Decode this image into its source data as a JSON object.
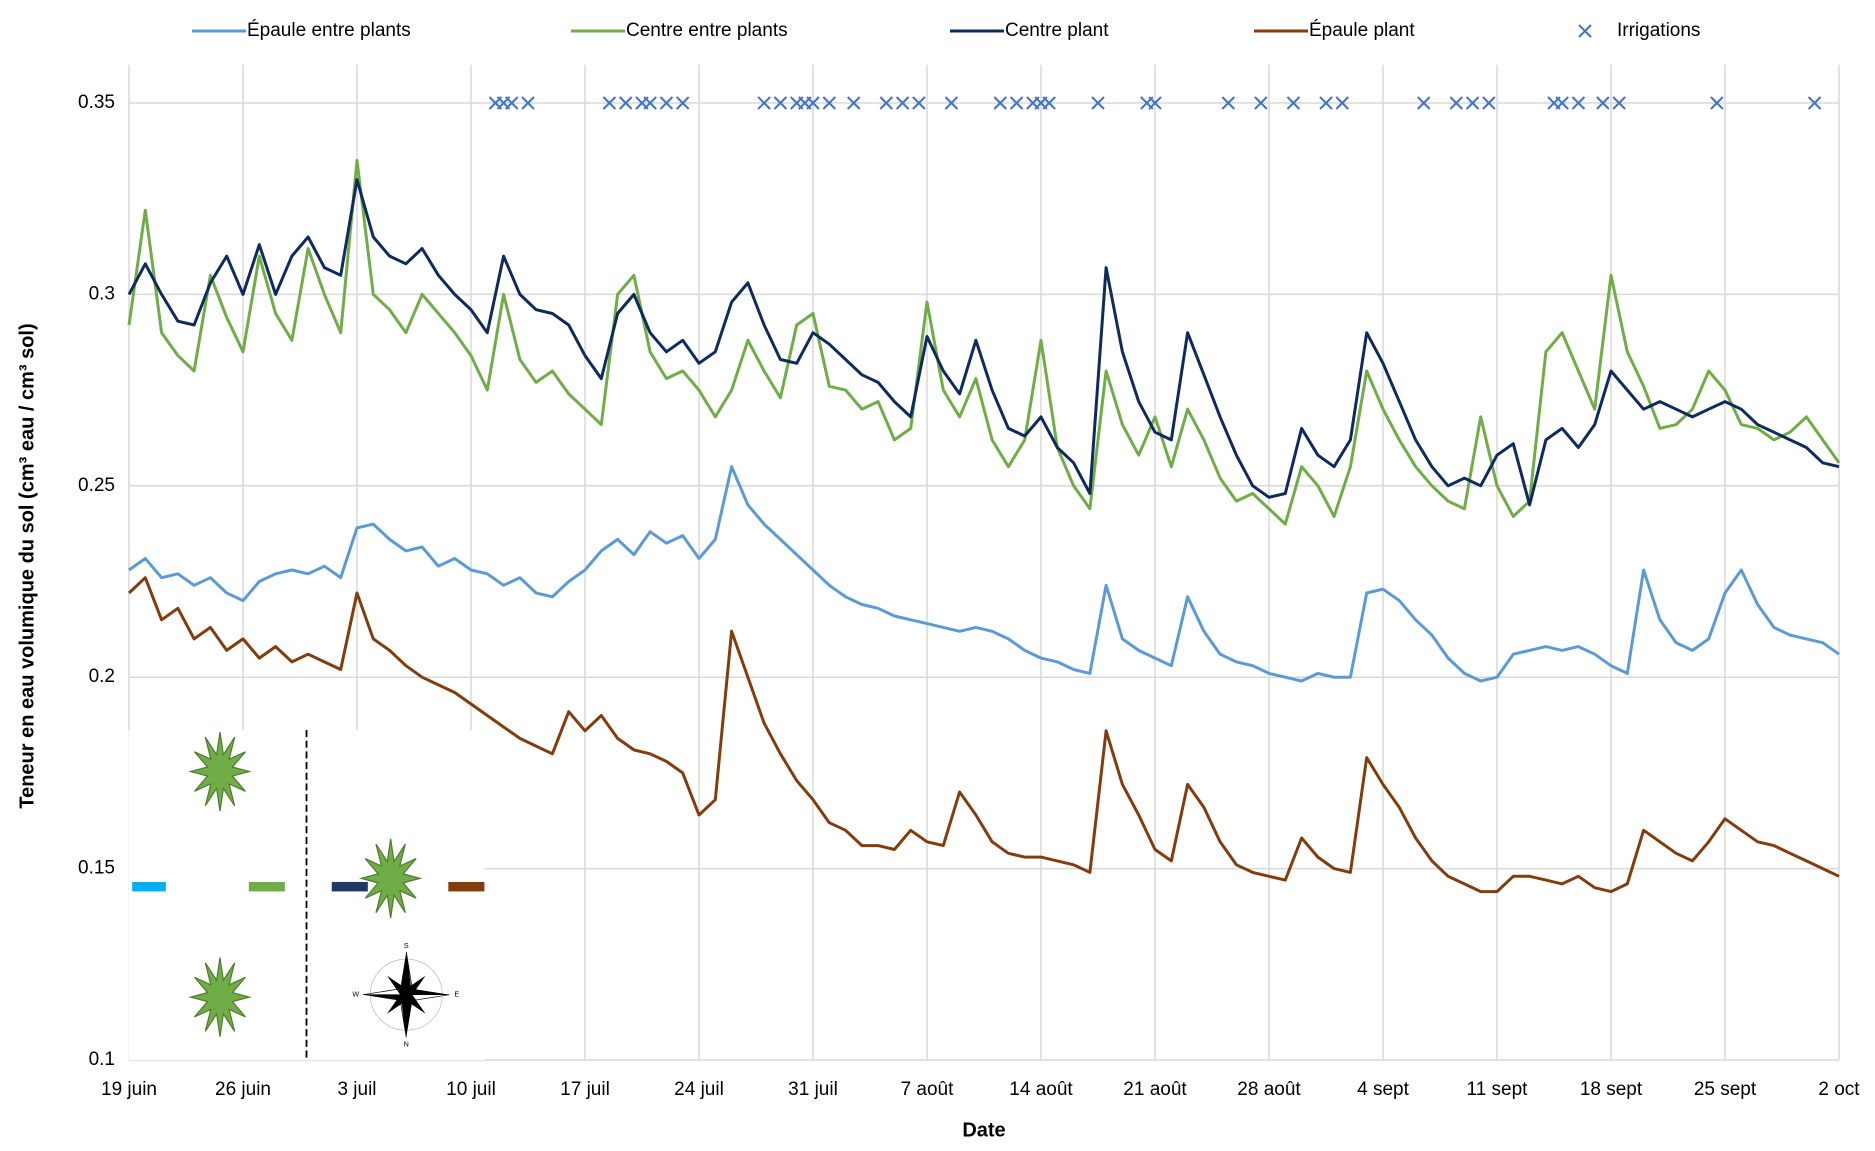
{
  "chart_data": {
    "type": "line",
    "x_label": "Date",
    "y_label": "Teneur en eau volumique du sol (cm³ eau / cm³ sol)",
    "x": [
      0,
      1,
      2,
      3,
      4,
      5,
      6,
      7,
      8,
      9,
      10,
      11,
      12,
      13,
      14,
      15,
      16,
      17,
      18,
      19,
      20,
      21,
      22,
      23,
      24,
      25,
      26,
      27,
      28,
      29,
      30,
      31,
      32,
      33,
      34,
      35,
      36,
      37,
      38,
      39,
      40,
      41,
      42,
      43,
      44,
      45,
      46,
      47,
      48,
      49,
      50,
      51,
      52,
      53,
      54,
      55,
      56,
      57,
      58,
      59,
      60,
      61,
      62,
      63,
      64,
      65,
      66,
      67,
      68,
      69,
      70,
      71,
      72,
      73,
      74,
      75,
      76,
      77,
      78,
      79,
      80,
      81,
      82,
      83,
      84,
      85,
      86,
      87,
      88,
      89,
      90,
      91,
      92,
      93,
      94,
      95,
      96,
      97,
      98,
      99,
      100,
      101,
      102,
      103,
      104,
      105
    ],
    "xlim": [
      0,
      105
    ],
    "xticks": [
      {
        "value": 0,
        "label": "19 juin"
      },
      {
        "value": 7,
        "label": "26 juin"
      },
      {
        "value": 14,
        "label": "3 juil"
      },
      {
        "value": 21,
        "label": "10 juil"
      },
      {
        "value": 28,
        "label": "17 juil"
      },
      {
        "value": 35,
        "label": "24 juil"
      },
      {
        "value": 42,
        "label": "31 juil"
      },
      {
        "value": 49,
        "label": "7 août"
      },
      {
        "value": 56,
        "label": "14 août"
      },
      {
        "value": 63,
        "label": "21 août"
      },
      {
        "value": 70,
        "label": "28 août"
      },
      {
        "value": 77,
        "label": "4 sept"
      },
      {
        "value": 84,
        "label": "11 sept"
      },
      {
        "value": 91,
        "label": "18 sept"
      },
      {
        "value": 98,
        "label": "25 sept"
      },
      {
        "value": 105,
        "label": "2 oct"
      }
    ],
    "ylim": [
      0.1,
      0.36
    ],
    "yticks": [
      0.1,
      0.15,
      0.2,
      0.25,
      0.3,
      0.35
    ],
    "grid": true,
    "legend": "top",
    "series": [
      {
        "name": "Épaule entre plants",
        "color": "#5b9bd5",
        "values": [
          0.228,
          0.231,
          0.226,
          0.227,
          0.224,
          0.226,
          0.222,
          0.22,
          0.225,
          0.227,
          0.228,
          0.227,
          0.229,
          0.226,
          0.239,
          0.24,
          0.236,
          0.233,
          0.234,
          0.229,
          0.231,
          0.228,
          0.227,
          0.224,
          0.226,
          0.222,
          0.221,
          0.225,
          0.228,
          0.233,
          0.236,
          0.232,
          0.238,
          0.235,
          0.237,
          0.231,
          0.236,
          0.255,
          0.245,
          0.24,
          0.236,
          0.232,
          0.228,
          0.224,
          0.221,
          0.219,
          0.218,
          0.216,
          0.215,
          0.214,
          0.213,
          0.212,
          0.213,
          0.212,
          0.21,
          0.207,
          0.205,
          0.204,
          0.202,
          0.201,
          0.224,
          0.21,
          0.207,
          0.205,
          0.203,
          0.221,
          0.212,
          0.206,
          0.204,
          0.203,
          0.201,
          0.2,
          0.199,
          0.201,
          0.2,
          0.2,
          0.222,
          0.223,
          0.22,
          0.215,
          0.211,
          0.205,
          0.201,
          0.199,
          0.2,
          0.206,
          0.207,
          0.208,
          0.207,
          0.208,
          0.206,
          0.203,
          0.201,
          0.228,
          0.215,
          0.209,
          0.207,
          0.21,
          0.222,
          0.228,
          0.219,
          0.213,
          0.211,
          0.21,
          0.209,
          0.206
        ]
      },
      {
        "name": "Centre entre plants",
        "color": "#70ad47",
        "values": [
          0.292,
          0.322,
          0.29,
          0.284,
          0.28,
          0.305,
          0.294,
          0.285,
          0.31,
          0.295,
          0.288,
          0.312,
          0.3,
          0.29,
          0.335,
          0.3,
          0.296,
          0.29,
          0.3,
          0.295,
          0.29,
          0.284,
          0.275,
          0.3,
          0.283,
          0.277,
          0.28,
          0.274,
          0.27,
          0.266,
          0.3,
          0.305,
          0.285,
          0.278,
          0.28,
          0.275,
          0.268,
          0.275,
          0.288,
          0.28,
          0.273,
          0.292,
          0.295,
          0.276,
          0.275,
          0.27,
          0.272,
          0.262,
          0.265,
          0.298,
          0.275,
          0.268,
          0.278,
          0.262,
          0.255,
          0.262,
          0.288,
          0.26,
          0.25,
          0.244,
          0.28,
          0.266,
          0.258,
          0.268,
          0.255,
          0.27,
          0.262,
          0.252,
          0.246,
          0.248,
          0.244,
          0.24,
          0.255,
          0.25,
          0.242,
          0.255,
          0.28,
          0.27,
          0.262,
          0.255,
          0.25,
          0.246,
          0.244,
          0.268,
          0.25,
          0.242,
          0.246,
          0.285,
          0.29,
          0.28,
          0.27,
          0.305,
          0.285,
          0.276,
          0.265,
          0.266,
          0.27,
          0.28,
          0.275,
          0.266,
          0.265,
          0.262,
          0.264,
          0.268,
          0.262,
          0.256
        ]
      },
      {
        "name": "Centre plant",
        "color": "#0e2a5e",
        "values": [
          0.3,
          0.308,
          0.3,
          0.293,
          0.292,
          0.303,
          0.31,
          0.3,
          0.313,
          0.3,
          0.31,
          0.315,
          0.307,
          0.305,
          0.33,
          0.315,
          0.31,
          0.308,
          0.312,
          0.305,
          0.3,
          0.296,
          0.29,
          0.31,
          0.3,
          0.296,
          0.295,
          0.292,
          0.284,
          0.278,
          0.295,
          0.3,
          0.29,
          0.285,
          0.288,
          0.282,
          0.285,
          0.298,
          0.303,
          0.292,
          0.283,
          0.282,
          0.29,
          0.287,
          0.283,
          0.279,
          0.277,
          0.272,
          0.268,
          0.289,
          0.28,
          0.274,
          0.288,
          0.275,
          0.265,
          0.263,
          0.268,
          0.26,
          0.256,
          0.248,
          0.307,
          0.285,
          0.272,
          0.264,
          0.262,
          0.29,
          0.279,
          0.268,
          0.258,
          0.25,
          0.247,
          0.248,
          0.265,
          0.258,
          0.255,
          0.262,
          0.29,
          0.282,
          0.272,
          0.262,
          0.255,
          0.25,
          0.252,
          0.25,
          0.258,
          0.261,
          0.245,
          0.262,
          0.265,
          0.26,
          0.266,
          0.28,
          0.275,
          0.27,
          0.272,
          0.27,
          0.268,
          0.27,
          0.272,
          0.27,
          0.266,
          0.264,
          0.262,
          0.26,
          0.256,
          0.255
        ]
      },
      {
        "name": "Épaule plant",
        "color": "#843c0c",
        "values": [
          0.222,
          0.226,
          0.215,
          0.218,
          0.21,
          0.213,
          0.207,
          0.21,
          0.205,
          0.208,
          0.204,
          0.206,
          0.204,
          0.202,
          0.222,
          0.21,
          0.207,
          0.203,
          0.2,
          0.198,
          0.196,
          0.193,
          0.19,
          0.187,
          0.184,
          0.182,
          0.18,
          0.191,
          0.186,
          0.19,
          0.184,
          0.181,
          0.18,
          0.178,
          0.175,
          0.164,
          0.168,
          0.212,
          0.2,
          0.188,
          0.18,
          0.173,
          0.168,
          0.162,
          0.16,
          0.156,
          0.156,
          0.155,
          0.16,
          0.157,
          0.156,
          0.17,
          0.164,
          0.157,
          0.154,
          0.153,
          0.153,
          0.152,
          0.151,
          0.149,
          0.186,
          0.172,
          0.164,
          0.155,
          0.152,
          0.172,
          0.166,
          0.157,
          0.151,
          0.149,
          0.148,
          0.147,
          0.158,
          0.153,
          0.15,
          0.149,
          0.179,
          0.172,
          0.166,
          0.158,
          0.152,
          0.148,
          0.146,
          0.144,
          0.144,
          0.148,
          0.148,
          0.147,
          0.146,
          0.148,
          0.145,
          0.144,
          0.146,
          0.16,
          0.157,
          0.154,
          0.152,
          0.157,
          0.163,
          0.16,
          0.157,
          0.156,
          0.154,
          0.152,
          0.15,
          0.148
        ]
      },
      {
        "name": "Irrigations",
        "color": "#4472c4",
        "type": "scatter",
        "marker": "x",
        "x": [
          22.5,
          23,
          23.5,
          24.5,
          29.5,
          30.5,
          31.5,
          32,
          33,
          34,
          39,
          40,
          41,
          41.5,
          42,
          43,
          44.5,
          46.5,
          47.5,
          48.5,
          50.5,
          53.5,
          54.5,
          55.5,
          56,
          56.5,
          59.5,
          62.5,
          63,
          67.5,
          69.5,
          71.5,
          73.5,
          74.5,
          79.5,
          81.5,
          82.5,
          83.5,
          87.5,
          88,
          89,
          90.5,
          91.5,
          97.5,
          103.5
        ],
        "values": [
          0.35,
          0.35,
          0.35,
          0.35,
          0.35,
          0.35,
          0.35,
          0.35,
          0.35,
          0.35,
          0.35,
          0.35,
          0.35,
          0.35,
          0.35,
          0.35,
          0.35,
          0.35,
          0.35,
          0.35,
          0.35,
          0.35,
          0.35,
          0.35,
          0.35,
          0.35,
          0.35,
          0.35,
          0.35,
          0.35,
          0.35,
          0.35,
          0.35,
          0.35,
          0.35,
          0.35,
          0.35,
          0.35,
          0.35,
          0.35,
          0.35,
          0.35,
          0.35,
          0.35,
          0.35
        ]
      }
    ]
  },
  "inset": {
    "compass": {
      "top": "S",
      "bottom": "N",
      "left": "W",
      "right": "E"
    }
  }
}
